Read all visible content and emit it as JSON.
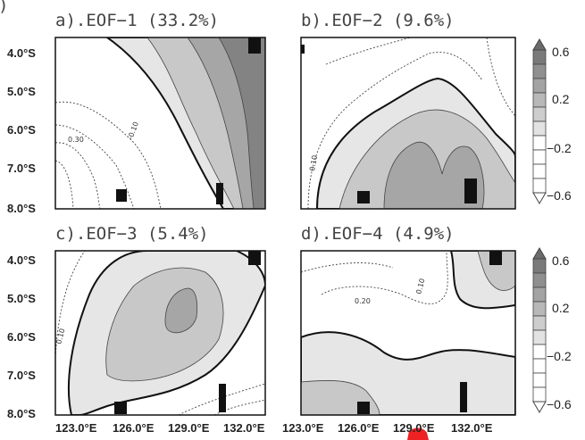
{
  "panels": [
    {
      "title": "a).EOF−1 (33.2%)",
      "contour_labels": [
        "0.30",
        "-0.10"
      ]
    },
    {
      "title": "b).EOF−2 (9.6%)",
      "contour_labels": [
        "0.10"
      ]
    },
    {
      "title": "c).EOF−3 (5.4%)",
      "contour_labels": [
        "0.10"
      ]
    },
    {
      "title": "d).EOF−4 (4.9%)",
      "contour_labels": [
        "0.20",
        "0.10"
      ]
    }
  ],
  "lat_labels": [
    "4.0°S",
    "5.0°S",
    "6.0°S",
    "7.0°S",
    "8.0°S"
  ],
  "lon_labels": [
    "123.0°E",
    "126.0°E",
    "129.0°E",
    "132.0°E"
  ],
  "colorbar_labels": [
    "0.6",
    "0.2",
    "−0.2",
    "−0.6"
  ],
  "colors": {
    "level1": "#e6e6e6",
    "level2": "#c8c8c8",
    "level3": "#a6a6a6",
    "level4": "#838383",
    "frame": "#111111",
    "land": "#111111"
  }
}
